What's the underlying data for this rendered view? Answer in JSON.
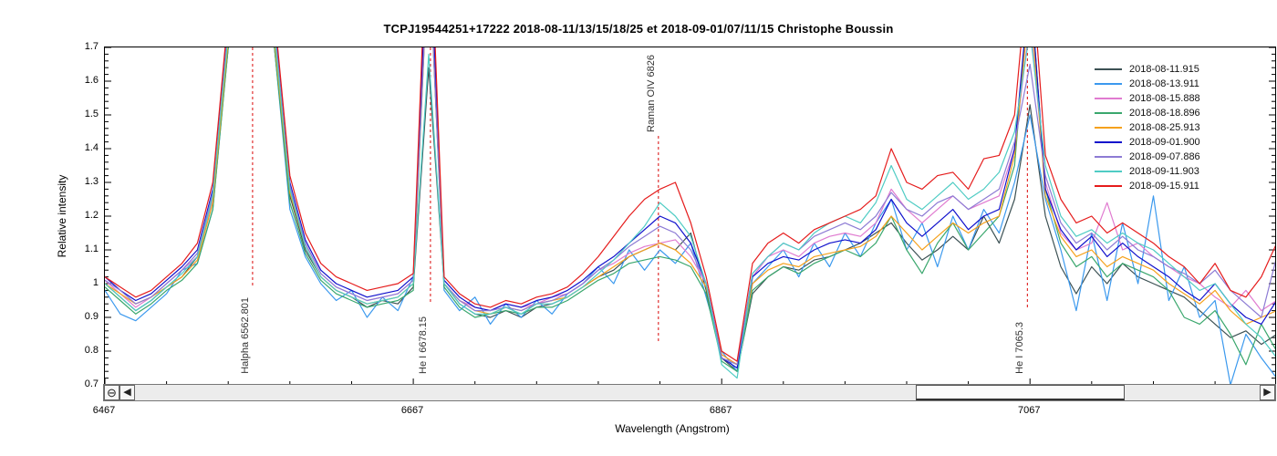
{
  "header": {
    "title": "TCPJ19544251+17222  2018-08-11/13/15/18/25 et 2018-09-01/07/11/15   Christophe Boussin"
  },
  "scrollbar": {
    "zoom_out_icon": "⊖",
    "left_arrow_icon": "◀",
    "right_arrow_icon": "▶",
    "thumb_left": 890,
    "thumb_width": 229
  },
  "colors": {
    "marker_line": "#e03030",
    "axis": "#000000"
  },
  "chart_data": {
    "type": "line",
    "title": "TCPJ19544251+17222  2018-08-11/13/15/18/25 et 2018-09-01/07/11/15   Christophe Boussin",
    "xlabel": "Wavelength (Angstrom)",
    "ylabel": "Relative intensity",
    "xlim": [
      6467,
      7226
    ],
    "ylim": [
      0.7,
      1.7
    ],
    "x_major_ticks": [
      6467,
      6667,
      6867,
      7067
    ],
    "x_minor_step": 40,
    "y_major_step": 0.1,
    "y_minor_step": 0.02,
    "grid": false,
    "legend_position": "top-right",
    "markers": [
      {
        "label": "Halpha 6562.801",
        "x": 6562.801,
        "label_pos": "bottom"
      },
      {
        "label": "He I 6678.15",
        "x": 6678.15,
        "label_pos": "bottom"
      },
      {
        "label": "Raman OIV 6826",
        "x": 6826,
        "label_pos": "top"
      },
      {
        "label": "He I 7065.3",
        "x": 7065.3,
        "label_pos": "bottom"
      }
    ],
    "x": [
      6467,
      6477,
      6487,
      6497,
      6507,
      6517,
      6527,
      6537,
      6547,
      6557,
      6567,
      6577,
      6587,
      6597,
      6607,
      6617,
      6627,
      6637,
      6647,
      6657,
      6667,
      6677,
      6687,
      6697,
      6707,
      6717,
      6727,
      6737,
      6747,
      6757,
      6767,
      6777,
      6787,
      6797,
      6807,
      6817,
      6827,
      6837,
      6847,
      6857,
      6867,
      6877,
      6887,
      6897,
      6907,
      6917,
      6927,
      6937,
      6947,
      6957,
      6967,
      6977,
      6987,
      6997,
      7007,
      7017,
      7027,
      7037,
      7047,
      7057,
      7067,
      7077,
      7087,
      7097,
      7107,
      7117,
      7127,
      7137,
      7147,
      7157,
      7167,
      7177,
      7187,
      7197,
      7207,
      7217,
      7227
    ],
    "series": [
      {
        "name": "2018-08-11.915",
        "color": "#3c5154",
        "values": [
          1.0,
          0.96,
          0.92,
          0.95,
          0.99,
          1.02,
          1.08,
          1.26,
          1.7,
          2.6,
          2.6,
          1.7,
          1.26,
          1.1,
          1.02,
          0.98,
          0.96,
          0.93,
          0.95,
          0.94,
          0.99,
          1.64,
          1.0,
          0.94,
          0.91,
          0.9,
          0.92,
          0.9,
          0.93,
          0.94,
          0.96,
          0.99,
          1.02,
          1.04,
          1.08,
          1.1,
          1.12,
          1.1,
          1.15,
          0.98,
          0.78,
          0.74,
          0.97,
          1.02,
          1.05,
          1.04,
          1.07,
          1.08,
          1.1,
          1.12,
          1.15,
          1.18,
          1.12,
          1.07,
          1.1,
          1.14,
          1.1,
          1.2,
          1.12,
          1.25,
          1.53,
          1.2,
          1.05,
          0.97,
          1.05,
          1.0,
          1.06,
          1.02,
          1.0,
          0.98,
          0.96,
          0.92,
          0.88,
          0.84,
          0.86,
          0.82,
          0.85
        ]
      },
      {
        "name": "2018-08-13.911",
        "color": "#3b99ee",
        "values": [
          0.98,
          0.91,
          0.89,
          0.93,
          0.97,
          1.04,
          1.06,
          1.22,
          1.7,
          2.6,
          2.6,
          1.7,
          1.22,
          1.08,
          1.0,
          0.95,
          0.98,
          0.9,
          0.96,
          0.92,
          1.02,
          2.0,
          0.98,
          0.92,
          0.96,
          0.88,
          0.94,
          0.9,
          0.95,
          0.91,
          0.97,
          1.0,
          1.05,
          1.0,
          1.1,
          1.04,
          1.1,
          1.06,
          1.12,
          0.96,
          0.8,
          0.74,
          1.0,
          1.05,
          1.1,
          1.02,
          1.12,
          1.05,
          1.15,
          1.08,
          1.18,
          1.25,
          1.1,
          1.18,
          1.05,
          1.2,
          1.1,
          1.22,
          1.15,
          1.3,
          1.5,
          1.25,
          1.1,
          0.92,
          1.15,
          0.95,
          1.18,
          1.0,
          1.26,
          0.95,
          1.05,
          0.9,
          0.95,
          0.7,
          0.85,
          0.78,
          0.72
        ]
      },
      {
        "name": "2018-08-15.888",
        "color": "#e07bd0",
        "values": [
          1.01,
          0.97,
          0.93,
          0.96,
          1.0,
          1.04,
          1.08,
          1.25,
          1.75,
          2.6,
          2.6,
          1.75,
          1.28,
          1.12,
          1.03,
          0.99,
          0.97,
          0.95,
          0.96,
          0.97,
          1.01,
          2.1,
          1.0,
          0.95,
          0.93,
          0.92,
          0.94,
          0.93,
          0.94,
          0.96,
          0.97,
          1.0,
          1.04,
          1.06,
          1.09,
          1.11,
          1.12,
          1.13,
          1.08,
          1.0,
          0.79,
          0.76,
          1.02,
          1.08,
          1.1,
          1.08,
          1.12,
          1.14,
          1.15,
          1.14,
          1.18,
          1.28,
          1.22,
          1.18,
          1.22,
          1.26,
          1.22,
          1.24,
          1.26,
          1.4,
          1.78,
          1.3,
          1.15,
          1.1,
          1.12,
          1.24,
          1.1,
          1.12,
          1.08,
          1.05,
          1.02,
          1.0,
          0.96,
          0.93,
          0.98,
          0.92,
          0.95
        ]
      },
      {
        "name": "2018-08-18.896",
        "color": "#3aa76d",
        "values": [
          0.99,
          0.95,
          0.91,
          0.94,
          0.98,
          1.01,
          1.06,
          1.22,
          1.7,
          2.6,
          2.6,
          1.7,
          1.24,
          1.09,
          1.01,
          0.97,
          0.95,
          0.93,
          0.94,
          0.95,
          0.98,
          2.0,
          0.99,
          0.93,
          0.9,
          0.91,
          0.92,
          0.91,
          0.93,
          0.93,
          0.95,
          0.98,
          1.01,
          1.03,
          1.06,
          1.07,
          1.08,
          1.07,
          1.05,
          0.97,
          0.77,
          0.74,
          0.98,
          1.02,
          1.05,
          1.03,
          1.06,
          1.08,
          1.1,
          1.08,
          1.12,
          1.2,
          1.1,
          1.03,
          1.12,
          1.18,
          1.1,
          1.15,
          1.2,
          1.35,
          1.9,
          1.28,
          1.12,
          1.05,
          1.08,
          1.02,
          1.06,
          1.04,
          1.02,
          0.98,
          0.9,
          0.88,
          0.92,
          0.85,
          0.76,
          0.88,
          0.8
        ]
      },
      {
        "name": "2018-08-25.913",
        "color": "#f5a11c",
        "values": [
          1.0,
          0.97,
          0.94,
          0.96,
          0.99,
          1.02,
          1.07,
          1.24,
          1.72,
          2.6,
          2.6,
          1.72,
          1.27,
          1.11,
          1.02,
          0.98,
          0.96,
          0.94,
          0.95,
          0.96,
          1.0,
          2.0,
          1.0,
          0.95,
          0.92,
          0.91,
          0.93,
          0.92,
          0.94,
          0.95,
          0.96,
          0.99,
          1.02,
          1.05,
          1.08,
          1.1,
          1.12,
          1.1,
          1.06,
          0.99,
          0.79,
          0.76,
          1.0,
          1.04,
          1.06,
          1.05,
          1.08,
          1.09,
          1.1,
          1.11,
          1.14,
          1.2,
          1.15,
          1.1,
          1.14,
          1.18,
          1.15,
          1.18,
          1.2,
          1.38,
          1.85,
          1.26,
          1.14,
          1.08,
          1.1,
          1.05,
          1.08,
          1.06,
          1.04,
          1.0,
          0.97,
          0.94,
          0.98,
          0.92,
          0.88,
          0.9,
          0.92
        ]
      },
      {
        "name": "2018-09-01.900",
        "color": "#1111cc",
        "values": [
          1.02,
          0.98,
          0.95,
          0.97,
          1.01,
          1.05,
          1.1,
          1.28,
          1.78,
          2.6,
          2.6,
          1.78,
          1.3,
          1.13,
          1.04,
          1.0,
          0.98,
          0.96,
          0.97,
          0.98,
          1.02,
          2.1,
          1.01,
          0.96,
          0.93,
          0.92,
          0.94,
          0.93,
          0.95,
          0.96,
          0.98,
          1.01,
          1.05,
          1.08,
          1.12,
          1.16,
          1.2,
          1.18,
          1.12,
          1.0,
          0.78,
          0.75,
          1.02,
          1.06,
          1.08,
          1.07,
          1.1,
          1.12,
          1.13,
          1.12,
          1.16,
          1.25,
          1.18,
          1.14,
          1.18,
          1.22,
          1.16,
          1.2,
          1.22,
          1.4,
          1.9,
          1.28,
          1.16,
          1.1,
          1.14,
          1.08,
          1.12,
          1.08,
          1.05,
          1.02,
          0.98,
          0.95,
          1.0,
          0.94,
          0.9,
          0.88,
          0.95
        ]
      },
      {
        "name": "2018-09-07.886",
        "color": "#8d7bd4",
        "values": [
          1.01,
          0.98,
          0.94,
          0.96,
          1.0,
          1.04,
          1.09,
          1.27,
          1.76,
          2.6,
          2.6,
          1.76,
          1.29,
          1.12,
          1.03,
          0.99,
          0.97,
          0.95,
          0.96,
          0.97,
          1.01,
          2.0,
          1.0,
          0.95,
          0.92,
          0.92,
          0.93,
          0.92,
          0.94,
          0.95,
          0.97,
          1.0,
          1.04,
          1.07,
          1.11,
          1.14,
          1.17,
          1.15,
          1.1,
          1.0,
          0.78,
          0.76,
          1.03,
          1.08,
          1.12,
          1.1,
          1.14,
          1.16,
          1.18,
          1.16,
          1.2,
          1.27,
          1.22,
          1.2,
          1.24,
          1.26,
          1.22,
          1.25,
          1.28,
          1.42,
          1.65,
          1.32,
          1.18,
          1.12,
          1.15,
          1.1,
          1.14,
          1.1,
          1.08,
          1.05,
          1.03,
          1.0,
          1.04,
          0.98,
          0.94,
          0.9,
          1.08
        ]
      },
      {
        "name": "2018-09-11.903",
        "color": "#4fccc4",
        "values": [
          1.0,
          0.96,
          0.92,
          0.95,
          0.99,
          1.03,
          1.08,
          1.26,
          1.74,
          2.6,
          2.6,
          1.74,
          1.28,
          1.11,
          1.02,
          0.98,
          0.96,
          0.94,
          0.95,
          0.96,
          1.0,
          1.68,
          1.0,
          0.94,
          0.91,
          0.91,
          0.93,
          0.91,
          0.94,
          0.94,
          0.96,
          0.99,
          1.03,
          1.07,
          1.12,
          1.17,
          1.24,
          1.2,
          1.14,
          1.0,
          0.76,
          0.72,
          1.03,
          1.08,
          1.12,
          1.1,
          1.15,
          1.18,
          1.2,
          1.18,
          1.24,
          1.35,
          1.25,
          1.22,
          1.26,
          1.3,
          1.25,
          1.28,
          1.33,
          1.45,
          1.75,
          1.35,
          1.2,
          1.14,
          1.16,
          1.12,
          1.15,
          1.12,
          1.1,
          1.06,
          1.02,
          0.98,
          1.0,
          0.94,
          0.88,
          0.84,
          0.78
        ]
      },
      {
        "name": "2018-09-15.911",
        "color": "#e51c1c",
        "values": [
          1.02,
          0.99,
          0.96,
          0.98,
          1.02,
          1.06,
          1.12,
          1.3,
          1.8,
          2.6,
          2.6,
          1.8,
          1.32,
          1.15,
          1.06,
          1.02,
          1.0,
          0.98,
          0.99,
          1.0,
          1.03,
          2.2,
          1.02,
          0.97,
          0.94,
          0.93,
          0.95,
          0.94,
          0.96,
          0.97,
          0.99,
          1.03,
          1.08,
          1.14,
          1.2,
          1.25,
          1.28,
          1.3,
          1.18,
          1.02,
          0.8,
          0.77,
          1.06,
          1.12,
          1.15,
          1.12,
          1.16,
          1.18,
          1.2,
          1.22,
          1.26,
          1.4,
          1.3,
          1.28,
          1.32,
          1.33,
          1.28,
          1.37,
          1.38,
          1.5,
          2.0,
          1.38,
          1.25,
          1.18,
          1.2,
          1.15,
          1.18,
          1.15,
          1.12,
          1.08,
          1.05,
          1.0,
          1.06,
          0.98,
          0.96,
          1.02,
          1.12
        ]
      }
    ]
  }
}
